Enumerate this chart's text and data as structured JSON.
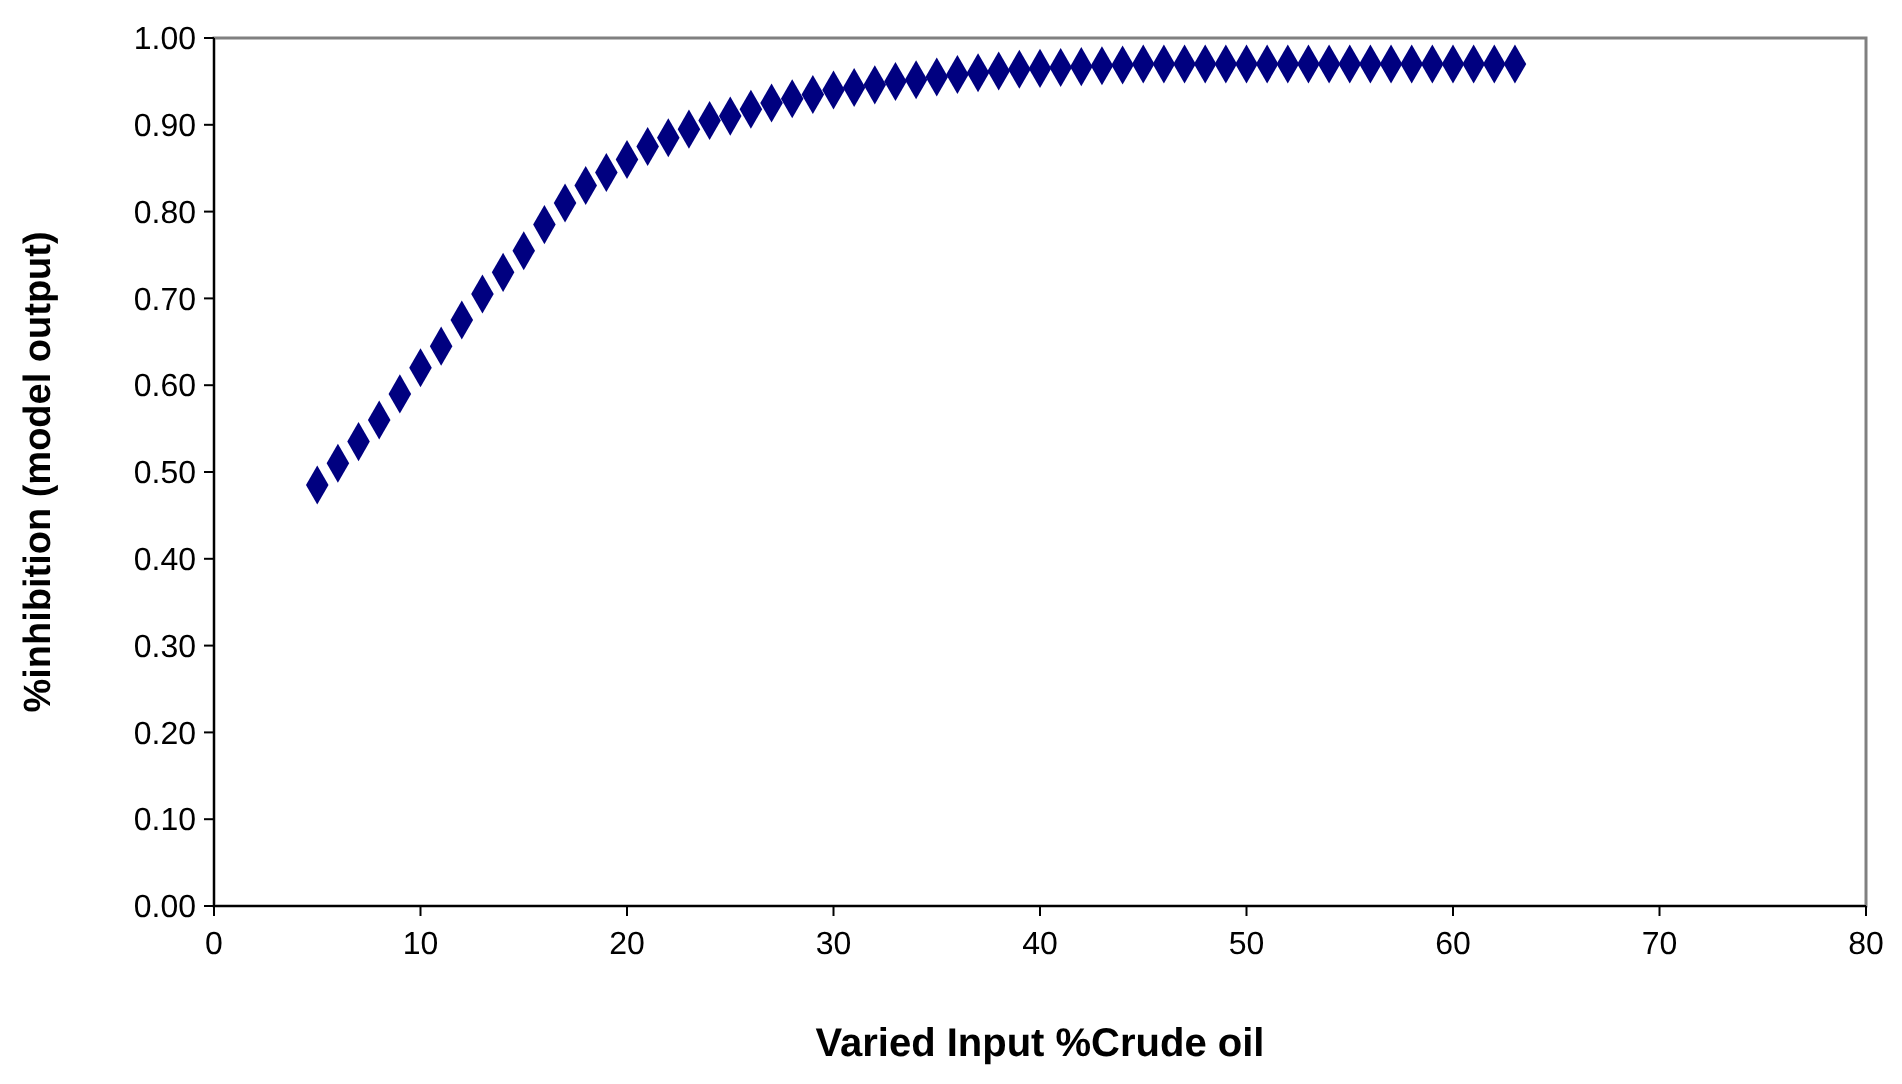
{
  "chart_data": {
    "type": "scatter",
    "xlabel": "Varied Input %Crude oil",
    "ylabel": "%inhibition (model output)",
    "marker": "diamond",
    "grid": false,
    "xlim": [
      0,
      80
    ],
    "xticks": [
      0,
      10,
      20,
      30,
      40,
      50,
      60,
      70,
      80
    ],
    "ylim": [
      0,
      1
    ],
    "yticks": [
      {
        "value": 0,
        "label": "0.00"
      },
      {
        "value": 0.1,
        "label": "0.10"
      },
      {
        "value": 0.2,
        "label": "0.20"
      },
      {
        "value": 0.3,
        "label": "0.30"
      },
      {
        "value": 0.4,
        "label": "0.40"
      },
      {
        "value": 0.5,
        "label": "0.50"
      },
      {
        "value": 0.6,
        "label": "0.60"
      },
      {
        "value": 0.7,
        "label": "0.70"
      },
      {
        "value": 0.8,
        "label": "0.80"
      },
      {
        "value": 0.9,
        "label": "0.90"
      },
      {
        "value": 1,
        "label": "1.00"
      }
    ],
    "series": [
      {
        "color": "#000080",
        "x": [
          5,
          6,
          7,
          8,
          9,
          10,
          11,
          12,
          13,
          14,
          15,
          16,
          17,
          18,
          19,
          20,
          21,
          22,
          23,
          24,
          25,
          26,
          27,
          28,
          29,
          30,
          31,
          32,
          33,
          34,
          35,
          36,
          37,
          38,
          39,
          40,
          41,
          42,
          43,
          44,
          45,
          46,
          47,
          48,
          49,
          50,
          51,
          52,
          53,
          54,
          55,
          56,
          57,
          58,
          59,
          60,
          61,
          62,
          63
        ],
        "values": [
          0.485,
          0.51,
          0.535,
          0.56,
          0.59,
          0.62,
          0.645,
          0.675,
          0.705,
          0.73,
          0.755,
          0.785,
          0.81,
          0.83,
          0.845,
          0.86,
          0.875,
          0.885,
          0.895,
          0.905,
          0.91,
          0.918,
          0.925,
          0.93,
          0.935,
          0.94,
          0.943,
          0.946,
          0.95,
          0.952,
          0.955,
          0.958,
          0.96,
          0.962,
          0.964,
          0.965,
          0.966,
          0.967,
          0.968,
          0.969,
          0.97,
          0.97,
          0.97,
          0.97,
          0.97,
          0.97,
          0.97,
          0.97,
          0.97,
          0.97,
          0.97,
          0.97,
          0.97,
          0.97,
          0.97,
          0.97,
          0.97,
          0.97,
          0.97
        ]
      }
    ]
  }
}
